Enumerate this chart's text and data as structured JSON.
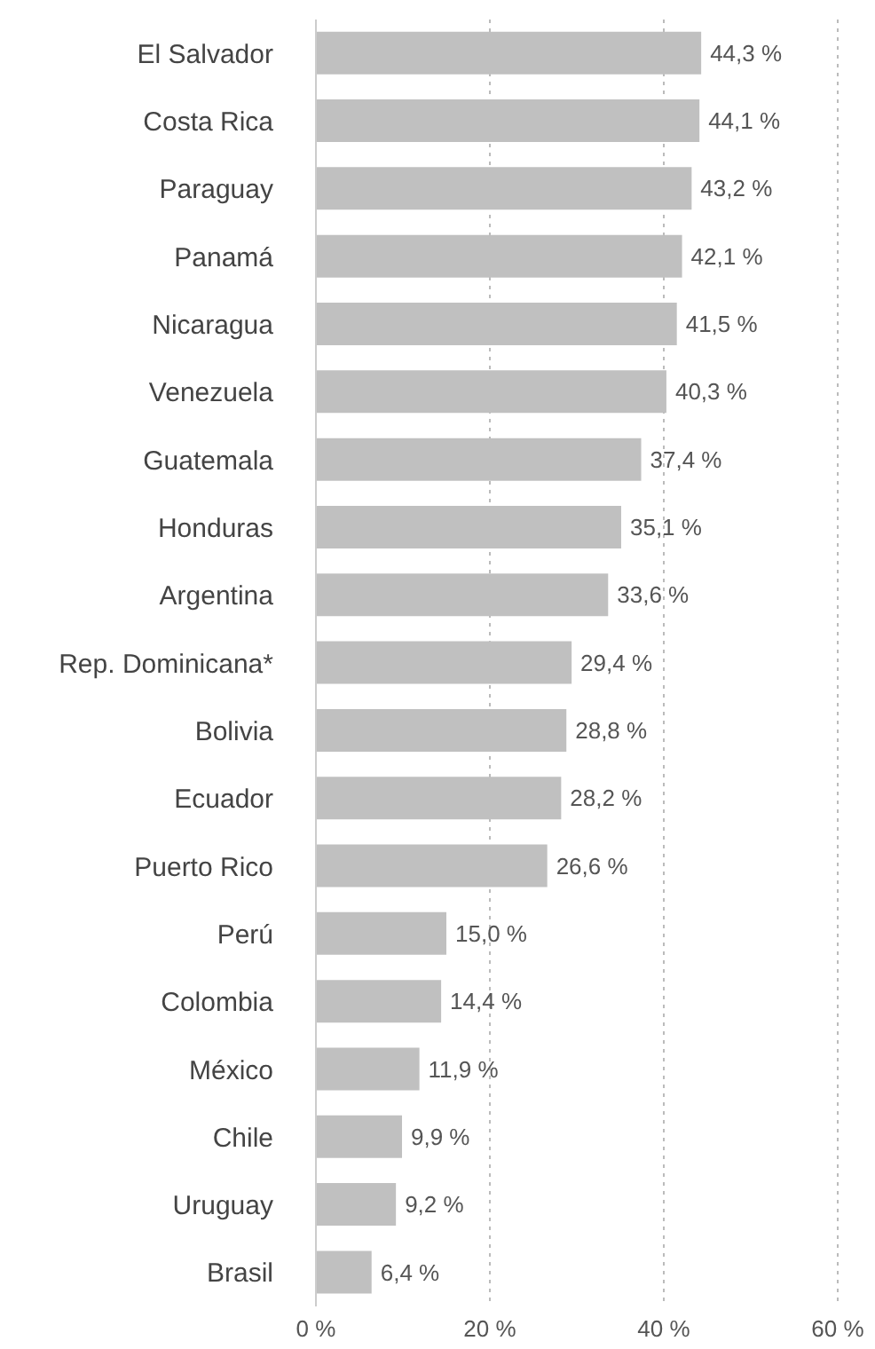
{
  "chart_data": {
    "type": "bar",
    "orientation": "horizontal",
    "categories": [
      "El Salvador",
      "Costa Rica",
      "Paraguay",
      "Panamá",
      "Nicaragua",
      "Venezuela",
      "Guatemala",
      "Honduras",
      "Argentina",
      "Rep. Dominicana*",
      "Bolivia",
      "Ecuador",
      "Puerto Rico",
      "Perú",
      "Colombia",
      "México",
      "Chile",
      "Uruguay",
      "Brasil"
    ],
    "values": [
      44.3,
      44.1,
      43.2,
      42.1,
      41.5,
      40.3,
      37.4,
      35.1,
      33.6,
      29.4,
      28.8,
      28.2,
      26.6,
      15.0,
      14.4,
      11.9,
      9.9,
      9.2,
      6.4
    ],
    "value_labels": [
      "44,3 %",
      "44,1 %",
      "43,2 %",
      "42,1 %",
      "41,5 %",
      "40,3 %",
      "37,4 %",
      "35,1 %",
      "33,6 %",
      "29,4 %",
      "28,8 %",
      "28,2 %",
      "26,6 %",
      "15,0 %",
      "14,4 %",
      "11,9 %",
      "9,9 %",
      "9,2 %",
      "6,4 %"
    ],
    "color": "#c0c0c0",
    "xlim": [
      0,
      60
    ],
    "xticks": [
      {
        "value": 0,
        "label": "0 %"
      },
      {
        "value": 20,
        "label": "20 %"
      },
      {
        "value": 40,
        "label": "40 %"
      },
      {
        "value": 60,
        "label": "60 %"
      }
    ],
    "grid": "x"
  }
}
